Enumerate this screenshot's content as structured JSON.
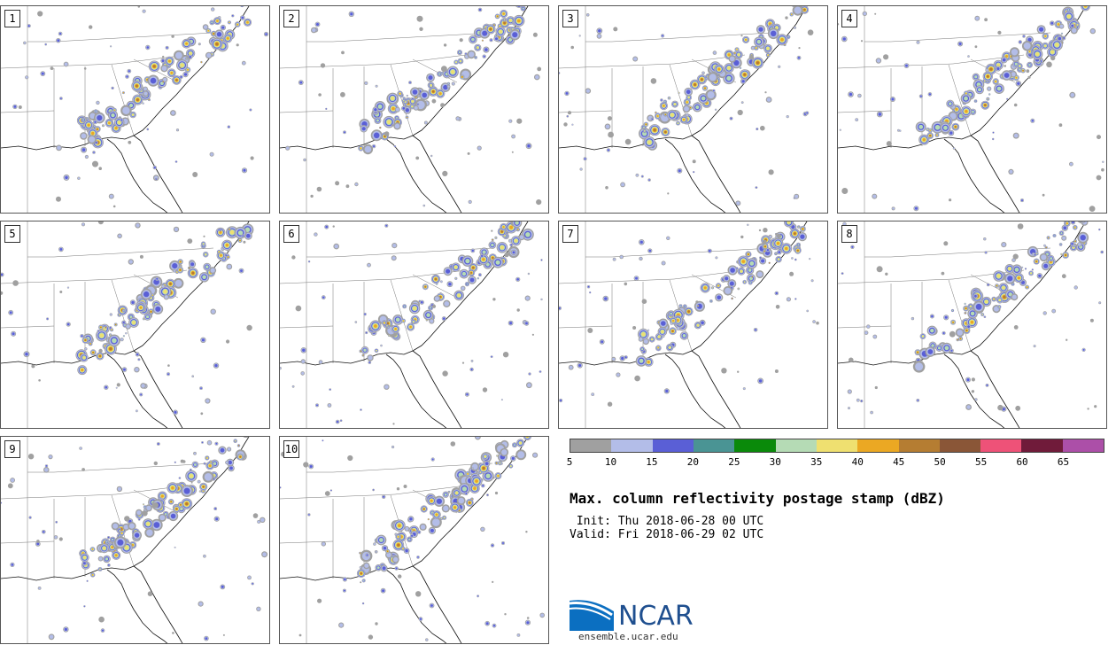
{
  "panels": [
    {
      "label": "1",
      "seed": 11
    },
    {
      "label": "2",
      "seed": 23
    },
    {
      "label": "3",
      "seed": 37
    },
    {
      "label": "4",
      "seed": 41
    },
    {
      "label": "5",
      "seed": 53
    },
    {
      "label": "6",
      "seed": 67
    },
    {
      "label": "7",
      "seed": 71
    },
    {
      "label": "8",
      "seed": 83
    },
    {
      "label": "9",
      "seed": 97
    },
    {
      "label": "10",
      "seed": 101
    }
  ],
  "colorbar": {
    "colors": [
      "#a0a0a0",
      "#b3bde8",
      "#5a5fd6",
      "#4a9494",
      "#0a8a0a",
      "#b5dbb5",
      "#efe070",
      "#eba823",
      "#b57d32",
      "#8a5637",
      "#ee5278",
      "#701b3a",
      "#ac4fa8"
    ],
    "ticks": [
      "5",
      "10",
      "15",
      "20",
      "25",
      "30",
      "35",
      "40",
      "45",
      "50",
      "55",
      "60",
      "65"
    ]
  },
  "title": "Max. column reflectivity postage stamp (dBZ)",
  "init": " Init: Thu 2018-06-28 00 UTC",
  "valid": "Valid: Fri 2018-06-29 02 UTC",
  "logo": {
    "text": "NCAR",
    "url": "ensemble.ucar.edu"
  }
}
